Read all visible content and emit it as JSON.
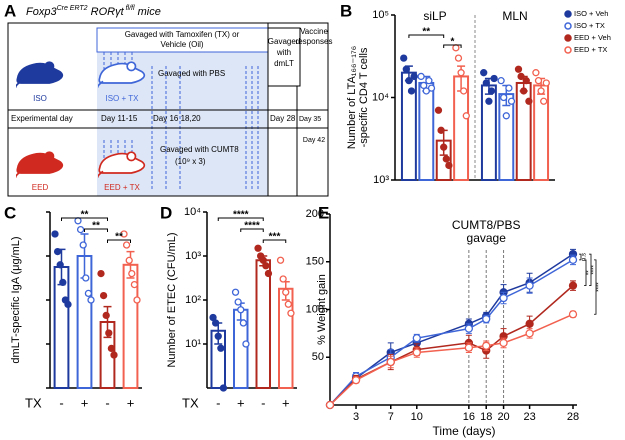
{
  "panel_labels": [
    "A",
    "B",
    "C",
    "D",
    "E"
  ],
  "diagram": {
    "title_parts": [
      "Foxp3",
      "Cre ERT2",
      " RORγt",
      " fl/fl",
      " mice"
    ],
    "tx_box": [
      "Gavaged with Tamoxifen (TX) or",
      "Vehicle (Oil)"
    ],
    "pbs_label": "Gavaged with PBS",
    "dmlt_box": [
      "Gavaged",
      "with",
      "dmLT"
    ],
    "vaccine_label": [
      "Vaccine",
      "responses"
    ],
    "day_row": [
      "Experimental day",
      "Day 11-15",
      "Day 16 18,20",
      "Day 28",
      "Day 35",
      "Day 42"
    ],
    "cumt8_label": [
      "Gavaged with CUMT8",
      "(10⁹ x 3)"
    ],
    "mice": [
      "ISO",
      "ISO + TX",
      "EED",
      "EED + TX"
    ]
  },
  "chart_data": [
    {
      "type": "bar",
      "log": true,
      "ylabel": [
        "Number of LTA₁₆₆₋₁₇₆",
        "-specific CD4 T cells"
      ],
      "categories": [
        "siLP",
        "MLN"
      ],
      "ylim": [
        1000,
        100000
      ],
      "yticks": [
        {
          "value": 1000,
          "label": "10³"
        },
        {
          "value": 10000,
          "label": "10⁴"
        },
        {
          "value": 100000,
          "label": "10⁵"
        }
      ],
      "legend": "upper right",
      "significance": [
        "**",
        "*"
      ],
      "series": [
        {
          "name": "ISO + Veh",
          "color": "#1f3a9e",
          "filled": true,
          "values": [
            20000,
            14000
          ],
          "errors": [
            4000,
            3000
          ],
          "points": [
            [
              30000,
              22000,
              16000,
              12000,
              18000
            ],
            [
              20000,
              15000,
              9000,
              12000,
              17000
            ]
          ]
        },
        {
          "name": "ISO + TX",
          "color": "#3f66d8",
          "filled": false,
          "values": [
            15000,
            11000
          ],
          "errors": [
            3000,
            3000
          ],
          "points": [
            [
              18000,
              14000,
              12000,
              16000,
              13000
            ],
            [
              16000,
              10000,
              6000,
              13000,
              9000
            ]
          ]
        },
        {
          "name": "EED + Veh",
          "color": "#b0281e",
          "filled": true,
          "values": [
            3000,
            15000
          ],
          "errors": [
            1000,
            3000
          ],
          "points": [
            [
              7000,
              4000,
              2500,
              1800,
              1500
            ],
            [
              22000,
              18000,
              12000,
              16000,
              9000
            ]
          ]
        },
        {
          "name": "EED + TX",
          "color": "#f2604f",
          "filled": false,
          "values": [
            18000,
            14000
          ],
          "errors": [
            6000,
            3000
          ],
          "points": [
            [
              40000,
              30000,
              20000,
              12000,
              6000
            ],
            [
              20000,
              16000,
              12000,
              9000,
              15000
            ]
          ]
        }
      ]
    },
    {
      "type": "bar",
      "log": false,
      "ylabel": [
        "dmLT-specific IgA (μg/mL)"
      ],
      "xlabel": "TX",
      "categories": [
        "-",
        "+",
        "-",
        "+"
      ],
      "colors": [
        "#1f3a9e",
        "#3f66d8",
        "#b0281e",
        "#f2604f"
      ],
      "filled": [
        true,
        false,
        true,
        false
      ],
      "ylim": [
        0,
        800
      ],
      "yticks": [
        0,
        200,
        400,
        600,
        800
      ],
      "tick_labels": false,
      "values": [
        550,
        600,
        300,
        560
      ],
      "errors": [
        80,
        100,
        70,
        60
      ],
      "points": [
        [
          700,
          620,
          560,
          480,
          400,
          380
        ],
        [
          760,
          720,
          650,
          500,
          430,
          400
        ],
        [
          520,
          420,
          330,
          250,
          180,
          150
        ],
        [
          700,
          650,
          580,
          520,
          470,
          400
        ]
      ],
      "significance": [
        "**",
        "**",
        "**"
      ]
    },
    {
      "type": "bar",
      "log": true,
      "ylabel": [
        "Number of ETEC (CFU/mL)"
      ],
      "xlabel": "TX",
      "categories": [
        "-",
        "+",
        "-",
        "+"
      ],
      "colors": [
        "#1f3a9e",
        "#3f66d8",
        "#b0281e",
        "#f2604f"
      ],
      "filled": [
        true,
        false,
        true,
        false
      ],
      "ylim": [
        1,
        10000
      ],
      "yticks": [
        {
          "value": 10,
          "label": "10¹"
        },
        {
          "value": 100,
          "label": "10²"
        },
        {
          "value": 1000,
          "label": "10³"
        },
        {
          "value": 10000,
          "label": "10⁴"
        }
      ],
      "values": [
        20,
        60,
        800,
        180
      ],
      "errors": [
        10,
        25,
        200,
        80
      ],
      "points": [
        [
          40,
          30,
          15,
          8,
          1
        ],
        [
          150,
          90,
          60,
          30,
          10
        ],
        [
          1500,
          1000,
          800,
          600,
          400
        ],
        [
          800,
          300,
          150,
          80,
          50
        ]
      ],
      "significance": [
        "****",
        "****",
        "***"
      ]
    },
    {
      "type": "line",
      "ylabel": [
        "% Weight gain"
      ],
      "xlabel": "Time (days)",
      "x": [
        0,
        3,
        7,
        10,
        16,
        18,
        20,
        23,
        28
      ],
      "xlim": [
        0,
        28
      ],
      "xticks": [
        3,
        7,
        10,
        16,
        18,
        20,
        23,
        28
      ],
      "ylim": [
        0,
        200
      ],
      "yticks": [
        50,
        100,
        150,
        200
      ],
      "vlines": [
        16,
        18,
        20
      ],
      "annotation": [
        "CUMT8/PBS",
        "gavage"
      ],
      "significance": [
        "n.s",
        "**",
        "****",
        "****"
      ],
      "series": [
        {
          "name": "ISO + Veh",
          "color": "#1f3a9e",
          "filled": true,
          "values": [
            0,
            28,
            55,
            65,
            85,
            93,
            118,
            128,
            158
          ],
          "errors": [
            0,
            4,
            10,
            5,
            5,
            4,
            8,
            10,
            5
          ]
        },
        {
          "name": "ISO + TX",
          "color": "#3f66d8",
          "filled": false,
          "values": [
            0,
            30,
            50,
            70,
            80,
            90,
            112,
            125,
            152
          ],
          "errors": [
            0,
            4,
            8,
            4,
            5,
            4,
            6,
            8,
            5
          ]
        },
        {
          "name": "EED + Veh",
          "color": "#b0281e",
          "filled": true,
          "values": [
            0,
            27,
            45,
            58,
            65,
            57,
            72,
            85,
            125
          ],
          "errors": [
            0,
            4,
            8,
            6,
            8,
            8,
            8,
            8,
            5
          ]
        },
        {
          "name": "EED + TX",
          "color": "#f2604f",
          "filled": false,
          "values": [
            0,
            26,
            45,
            55,
            60,
            62,
            65,
            75,
            95
          ],
          "errors": [
            0,
            3,
            6,
            5,
            5,
            5,
            5,
            5,
            3
          ]
        }
      ]
    }
  ]
}
